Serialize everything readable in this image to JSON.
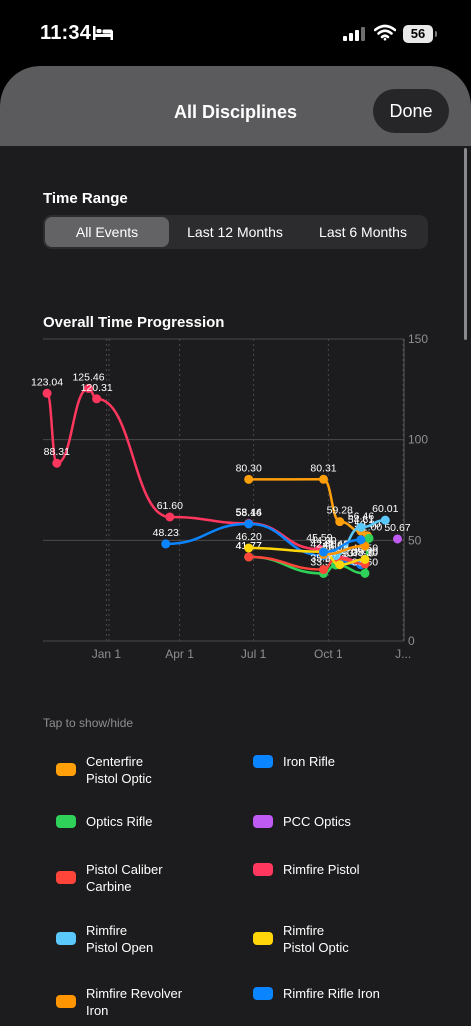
{
  "status_bar": {
    "time": "11:34",
    "battery": "56"
  },
  "sheet": {
    "title": "All Disciplines",
    "done_label": "Done"
  },
  "time_range": {
    "label": "Time Range",
    "options": [
      "All Events",
      "Last 12 Months",
      "Last 6 Months"
    ],
    "selected": "All Events"
  },
  "chart_section": {
    "title": "Overall Time Progression"
  },
  "chart_data": {
    "type": "line",
    "title": "Overall Time Progression",
    "ylim": [
      0,
      150
    ],
    "y_ticks": [
      0,
      50,
      100,
      150
    ],
    "y_axis_side": "right",
    "x_ticks": [
      "Jan 1",
      "Apr 1",
      "Jul 1",
      "Oct 1",
      "J..."
    ],
    "grid": true,
    "series": [
      {
        "name": "Rimfire Pistol",
        "color": "#ff375f",
        "labels": true,
        "points": [
          [
            "Oct 20",
            123.04
          ],
          [
            "Nov 1",
            88.31
          ],
          [
            "Dec 10",
            125.46
          ],
          [
            "Dec 20",
            120.31
          ],
          [
            "Mar 20",
            61.6
          ],
          [
            "Jun 25",
            58.44
          ],
          [
            "Sep 20",
            45.59
          ],
          [
            "Oct 10",
            41.9
          ],
          [
            "Nov 15",
            39.0
          ]
        ]
      },
      {
        "name": "Centerfire Pistol Optic",
        "color": "#ff9f0a",
        "labels": true,
        "points": [
          [
            "Jun 25",
            80.3
          ],
          [
            "Sep 25",
            80.31
          ],
          [
            "Oct 15",
            59.28
          ],
          [
            "Nov 10",
            54.61
          ],
          [
            "Nov 18",
            52.3
          ]
        ]
      },
      {
        "name": "Iron Rifle",
        "color": "#0a84ff",
        "labels": true,
        "points": [
          [
            "Mar 15",
            48.23
          ],
          [
            "Jun 25",
            58.16
          ],
          [
            "Sep 25",
            42.4
          ],
          [
            "Nov 10",
            37.9
          ]
        ]
      },
      {
        "name": "Optics Rifle",
        "color": "#30d158",
        "labels": true,
        "points": [
          [
            "Jun 25",
            41.77
          ],
          [
            "Sep 25",
            33.54
          ],
          [
            "Oct 10",
            37.76
          ],
          [
            "Nov 15",
            33.6
          ],
          [
            "Nov 20",
            51.0
          ]
        ]
      },
      {
        "name": "PCC Optics",
        "color": "#bf5af2",
        "labels": true,
        "points": [
          [
            "Dec 25",
            50.67
          ]
        ]
      },
      {
        "name": "Pistol Caliber Carbine",
        "color": "#ff453a",
        "labels": true,
        "points": [
          [
            "Jun 25",
            41.77
          ],
          [
            "Sep 25",
            35.5
          ],
          [
            "Oct 10",
            40.94
          ],
          [
            "Nov 15",
            38.3
          ]
        ]
      },
      {
        "name": "Rimfire Pistol Open",
        "color": "#5ac8fa",
        "labels": true,
        "points": [
          [
            "Oct 10",
            42.42
          ],
          [
            "Nov 10",
            56.46
          ],
          [
            "Dec 10",
            60.01
          ]
        ]
      },
      {
        "name": "Rimfire Pistol Optic",
        "color": "#ffd60a",
        "labels": true,
        "points": [
          [
            "Jun 25",
            46.2
          ],
          [
            "Sep 25",
            44.3
          ],
          [
            "Oct 15",
            37.9
          ],
          [
            "Nov 15",
            40.5
          ]
        ]
      },
      {
        "name": "Rimfire Revolver Iron",
        "color": "#ff9500",
        "labels": false,
        "points": [
          [
            "Sep 25",
            43.0
          ],
          [
            "Nov 15",
            47.2
          ]
        ]
      },
      {
        "name": "Rimfire Rifle Iron",
        "color": "#0a84ff",
        "labels": false,
        "points": [
          [
            "Sep 25",
            44.2
          ],
          [
            "Nov 10",
            50.3
          ]
        ]
      }
    ]
  },
  "legend": {
    "hint": "Tap to show/hide",
    "items": [
      {
        "label_line1": "Centerfire",
        "label_line2": "Pistol Optic",
        "color": "#ff9f0a"
      },
      {
        "label_line1": "Iron Rifle",
        "label_line2": "",
        "color": "#0a84ff"
      },
      {
        "label_line1": "Optics Rifle",
        "label_line2": "",
        "color": "#30d158"
      },
      {
        "label_line1": "PCC Optics",
        "label_line2": "",
        "color": "#bf5af2"
      },
      {
        "label_line1": "Pistol Caliber",
        "label_line2": "Carbine",
        "color": "#ff453a"
      },
      {
        "label_line1": "Rimfire Pistol",
        "label_line2": "",
        "color": "#ff375f"
      },
      {
        "label_line1": "Rimfire",
        "label_line2": "Pistol Open",
        "color": "#5ac8fa"
      },
      {
        "label_line1": "Rimfire",
        "label_line2": "Pistol Optic",
        "color": "#ffd60a"
      },
      {
        "label_line1": "Rimfire Revolver",
        "label_line2": "Iron",
        "color": "#ff9500"
      },
      {
        "label_line1": "Rimfire Rifle Iron",
        "label_line2": "",
        "color": "#0a84ff"
      }
    ]
  }
}
